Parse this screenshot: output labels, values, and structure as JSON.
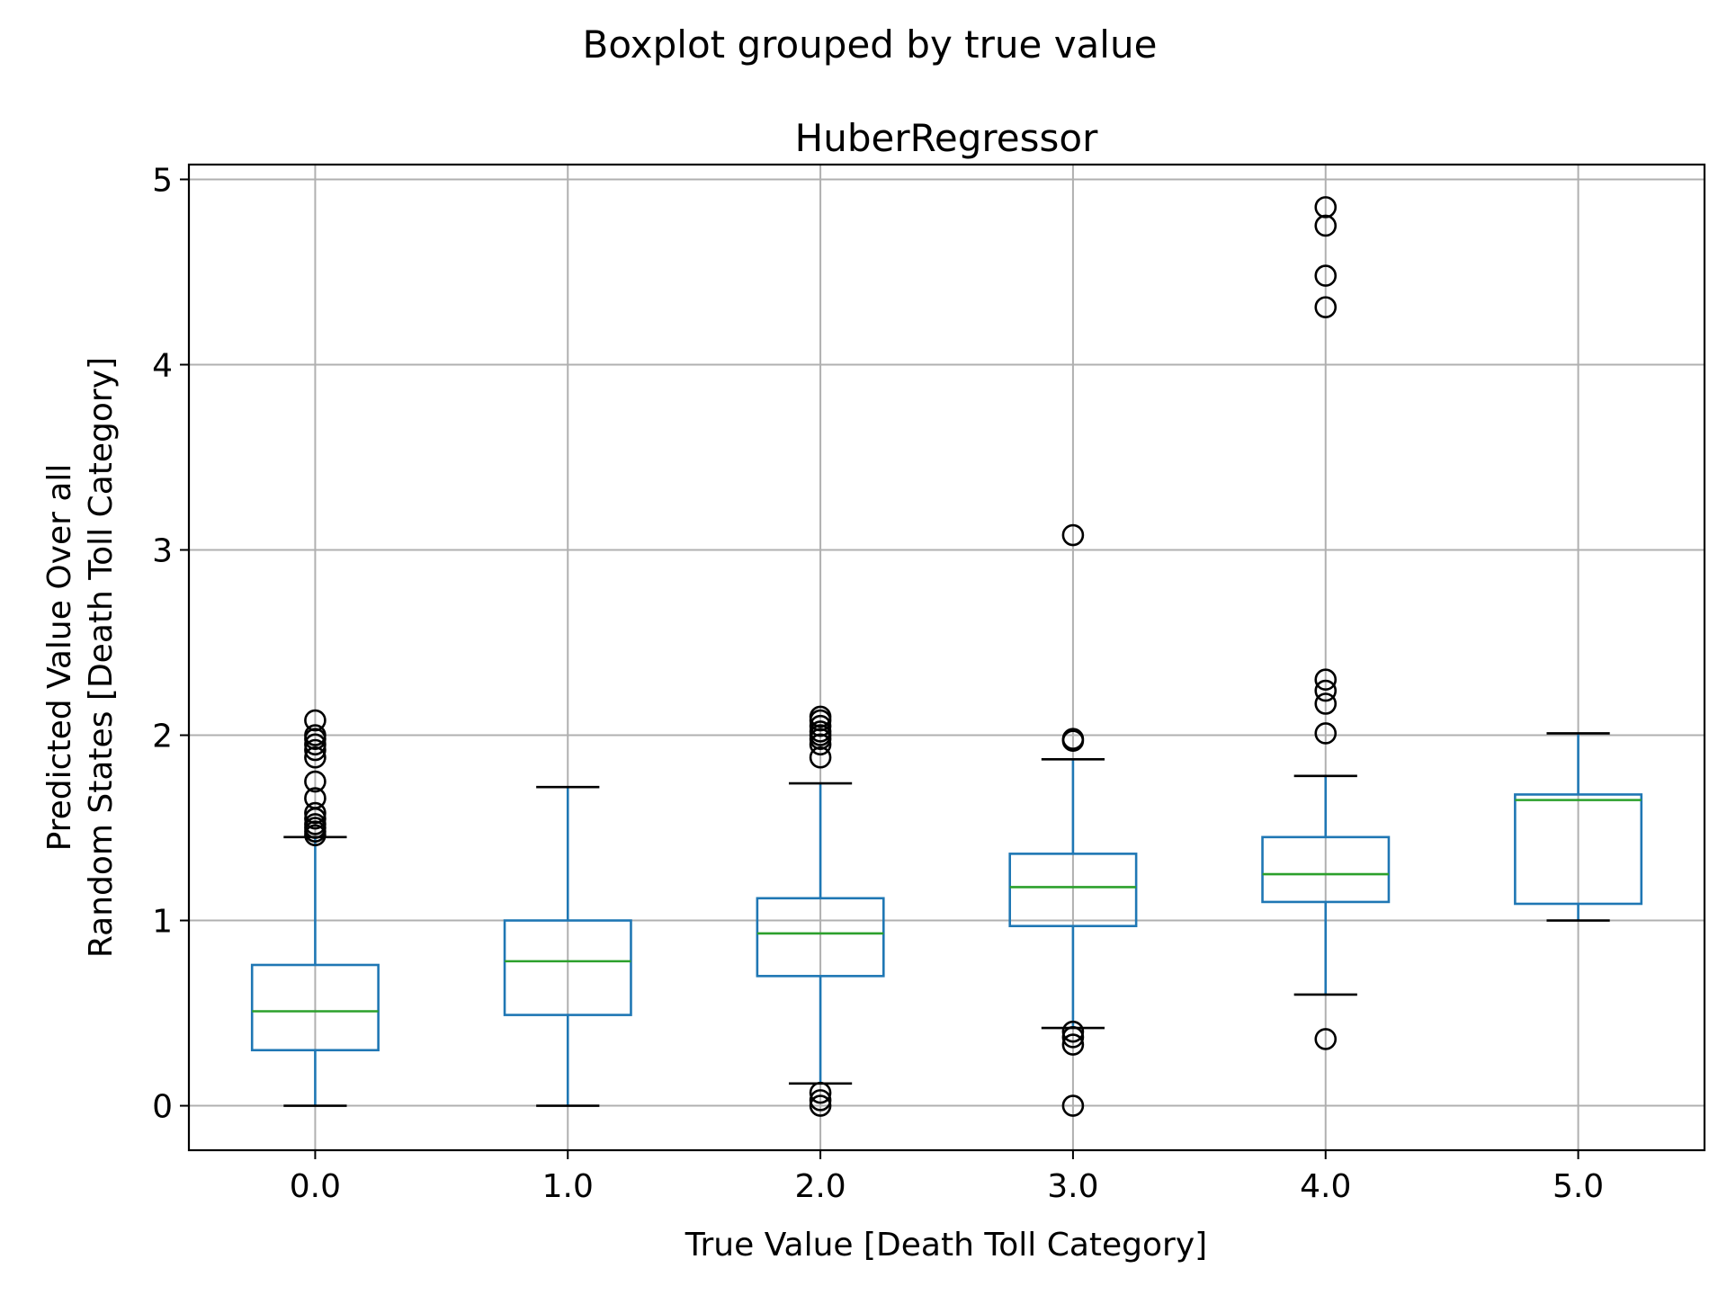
{
  "chart_data": {
    "type": "boxplot",
    "suptitle": "Boxplot grouped by true value",
    "title": "HuberRegressor",
    "xlabel": "True Value [Death Toll Category]",
    "ylabel_lines": [
      "Predicted Value Over all",
      "Random States [Death Toll Category]"
    ],
    "categories": [
      "0.0",
      "1.0",
      "2.0",
      "3.0",
      "4.0",
      "5.0"
    ],
    "y_ticks": [
      "0",
      "1",
      "2",
      "3",
      "4",
      "5"
    ],
    "ylim": [
      -0.24,
      5.08
    ],
    "grid": true,
    "colors": {
      "box": "#1f77b4",
      "median": "#2ca02c",
      "whisker": "#1f77b4",
      "cap": "#000000",
      "flier": "#000000",
      "grid": "#b0b0b0"
    },
    "boxes": [
      {
        "category": "0.0",
        "whisker_low": 0.0,
        "q1": 0.3,
        "median": 0.51,
        "q3": 0.76,
        "whisker_high": 1.45,
        "fliers": [
          1.46,
          1.48,
          1.5,
          1.52,
          1.55,
          1.58,
          1.66,
          1.75,
          1.88,
          1.92,
          1.95,
          1.98,
          2.0,
          2.08
        ]
      },
      {
        "category": "1.0",
        "whisker_low": 0.0,
        "q1": 0.49,
        "median": 0.78,
        "q3": 1.0,
        "whisker_high": 1.72,
        "fliers": []
      },
      {
        "category": "2.0",
        "whisker_low": 0.12,
        "q1": 0.7,
        "median": 0.93,
        "q3": 1.12,
        "whisker_high": 1.74,
        "fliers": [
          0.0,
          0.03,
          0.07,
          1.88,
          1.95,
          1.98,
          2.0,
          2.02,
          2.05,
          2.08,
          2.1
        ]
      },
      {
        "category": "3.0",
        "whisker_low": 0.42,
        "q1": 0.97,
        "median": 1.18,
        "q3": 1.36,
        "whisker_high": 1.87,
        "fliers": [
          0.0,
          0.33,
          0.37,
          0.4,
          1.97,
          1.98,
          3.08
        ]
      },
      {
        "category": "4.0",
        "whisker_low": 0.6,
        "q1": 1.1,
        "median": 1.25,
        "q3": 1.45,
        "whisker_high": 1.78,
        "fliers": [
          0.36,
          2.01,
          2.17,
          2.24,
          2.3,
          4.31,
          4.48,
          4.75,
          4.85
        ]
      },
      {
        "category": "5.0",
        "whisker_low": 1.0,
        "q1": 1.09,
        "median": 1.65,
        "q3": 1.68,
        "whisker_high": 2.01,
        "fliers": []
      }
    ]
  }
}
